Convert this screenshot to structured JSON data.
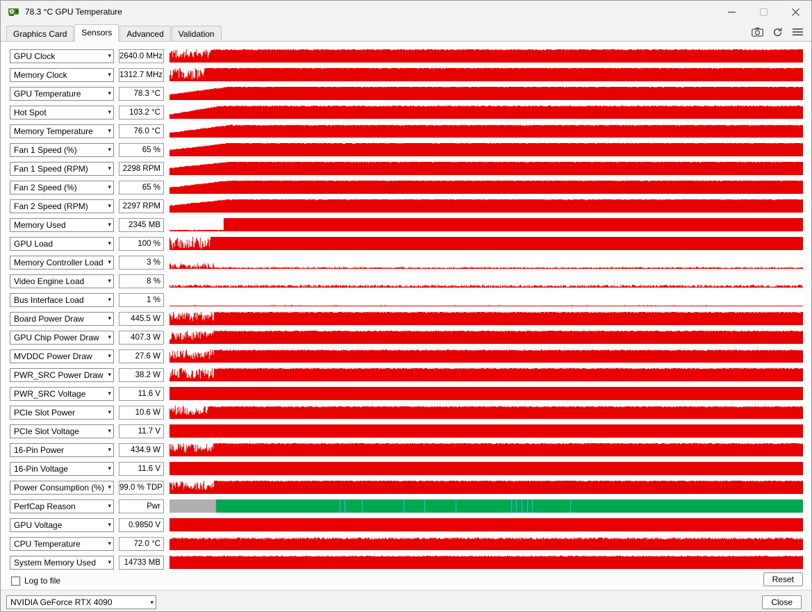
{
  "window": {
    "title": "78.3 °C GPU Temperature",
    "app_icon": "gpuz-app-icon",
    "controls": [
      "minimize-icon",
      "maximize-icon",
      "close-icon"
    ]
  },
  "tabs": [
    {
      "label": "Graphics Card",
      "active": false
    },
    {
      "label": "Sensors",
      "active": true
    },
    {
      "label": "Advanced",
      "active": false
    },
    {
      "label": "Validation",
      "active": false
    }
  ],
  "toolbar_icons": [
    "camera-icon",
    "refresh-icon",
    "menu-icon"
  ],
  "icons": {
    "chevron": "▾"
  },
  "colors": {
    "red": "#e60000",
    "green": "#00a84f",
    "gray": "#b0b0b0",
    "blue": "#58aaff",
    "graph_bg": "#ffffff"
  },
  "sensors": [
    {
      "name": "GPU Clock",
      "value": "2640.0 MHz",
      "graph": {
        "segments": [
          {
            "kind": "spikes",
            "w": 0.065,
            "min": 0.35,
            "max": 1
          },
          {
            "kind": "flat",
            "w": 0.935,
            "v": 1,
            "jitter": 0.05
          }
        ]
      }
    },
    {
      "name": "Memory Clock",
      "value": "1312.7 MHz",
      "graph": {
        "segments": [
          {
            "kind": "spikes",
            "w": 0.055,
            "min": 0.15,
            "max": 1
          },
          {
            "kind": "flat",
            "w": 0.945,
            "v": 1,
            "jitter": 0.03
          }
        ]
      }
    },
    {
      "name": "GPU Temperature",
      "value": "78.3 °C",
      "graph": {
        "segments": [
          {
            "kind": "ramp",
            "w": 0.09,
            "v0": 0.45,
            "v1": 1,
            "jitter": 0.05
          },
          {
            "kind": "flat",
            "w": 0.91,
            "v": 1,
            "jitter": 0.03
          }
        ]
      }
    },
    {
      "name": "Hot Spot",
      "value": "103.2 °C",
      "graph": {
        "segments": [
          {
            "kind": "ramp",
            "w": 0.08,
            "v0": 0.35,
            "v1": 1,
            "jitter": 0.05
          },
          {
            "kind": "flat",
            "w": 0.92,
            "v": 0.99,
            "jitter": 0.05
          }
        ]
      }
    },
    {
      "name": "Memory Temperature",
      "value": "76.0 °C",
      "graph": {
        "segments": [
          {
            "kind": "ramp",
            "w": 0.1,
            "v0": 0.4,
            "v1": 1,
            "jitter": 0.06
          },
          {
            "kind": "flat",
            "w": 0.9,
            "v": 0.97,
            "jitter": 0.06
          }
        ]
      }
    },
    {
      "name": "Fan 1 Speed (%)",
      "value": "65 %",
      "graph": {
        "segments": [
          {
            "kind": "ramp",
            "w": 0.09,
            "v0": 0.5,
            "v1": 1,
            "jitter": 0.04
          },
          {
            "kind": "flat",
            "w": 0.91,
            "v": 1,
            "jitter": 0.03
          }
        ]
      }
    },
    {
      "name": "Fan 1 Speed (RPM)",
      "value": "2298 RPM",
      "graph": {
        "segments": [
          {
            "kind": "ramp",
            "w": 0.09,
            "v0": 0.55,
            "v1": 1,
            "jitter": 0.04
          },
          {
            "kind": "flat",
            "w": 0.91,
            "v": 1,
            "jitter": 0.03
          }
        ]
      }
    },
    {
      "name": "Fan 2 Speed (%)",
      "value": "65 %",
      "graph": {
        "segments": [
          {
            "kind": "ramp",
            "w": 0.09,
            "v0": 0.5,
            "v1": 1,
            "jitter": 0.04
          },
          {
            "kind": "flat",
            "w": 0.91,
            "v": 1,
            "jitter": 0.03
          }
        ]
      }
    },
    {
      "name": "Fan 2 Speed (RPM)",
      "value": "2297 RPM",
      "graph": {
        "segments": [
          {
            "kind": "ramp",
            "w": 0.09,
            "v0": 0.55,
            "v1": 1,
            "jitter": 0.04
          },
          {
            "kind": "flat",
            "w": 0.91,
            "v": 1,
            "jitter": 0.03
          }
        ]
      }
    },
    {
      "name": "Memory Used",
      "value": "2345 MB",
      "graph": {
        "segments": [
          {
            "kind": "flat",
            "w": 0.085,
            "v": 0.12,
            "jitter": 0.05
          },
          {
            "kind": "flat",
            "w": 0.915,
            "v": 1,
            "jitter": 0.015
          }
        ]
      }
    },
    {
      "name": "GPU Load",
      "value": "100 %",
      "graph": {
        "segments": [
          {
            "kind": "spikes",
            "w": 0.065,
            "min": 0.1,
            "max": 1
          },
          {
            "kind": "flat",
            "w": 0.935,
            "v": 1,
            "jitter": 0.015
          }
        ]
      }
    },
    {
      "name": "Memory Controller Load",
      "value": "3 %",
      "graph": {
        "segments": [
          {
            "kind": "spikes",
            "w": 0.07,
            "min": 0.03,
            "max": 0.45
          },
          {
            "kind": "flat",
            "w": 0.93,
            "v": 0.14,
            "jitter": 0.11
          }
        ]
      }
    },
    {
      "name": "Video Engine Load",
      "value": "8 %",
      "graph": {
        "segments": [
          {
            "kind": "flat",
            "w": 1,
            "v": 0.22,
            "jitter": 0.18
          }
        ]
      }
    },
    {
      "name": "Bus Interface Load",
      "value": "1 %",
      "graph": {
        "segments": [
          {
            "kind": "flat",
            "w": 1,
            "v": 0.08,
            "jitter": 0.05
          }
        ]
      }
    },
    {
      "name": "Board Power Draw",
      "value": "445.5 W",
      "graph": {
        "segments": [
          {
            "kind": "spikes",
            "w": 0.07,
            "min": 0.3,
            "max": 1
          },
          {
            "kind": "flat",
            "w": 0.93,
            "v": 1,
            "jitter": 0.06
          }
        ]
      }
    },
    {
      "name": "GPU Chip Power Draw",
      "value": "407.3 W",
      "graph": {
        "segments": [
          {
            "kind": "spikes",
            "w": 0.07,
            "min": 0.3,
            "max": 1
          },
          {
            "kind": "flat",
            "w": 0.93,
            "v": 1,
            "jitter": 0.06
          }
        ]
      }
    },
    {
      "name": "MVDDC Power Draw",
      "value": "27.6 W",
      "graph": {
        "segments": [
          {
            "kind": "spikes",
            "w": 0.07,
            "min": 0.25,
            "max": 1
          },
          {
            "kind": "flat",
            "w": 0.93,
            "v": 0.98,
            "jitter": 0.07
          }
        ]
      }
    },
    {
      "name": "PWR_SRC Power Draw",
      "value": "38.2 W",
      "graph": {
        "segments": [
          {
            "kind": "spikes",
            "w": 0.07,
            "min": 0.2,
            "max": 1
          },
          {
            "kind": "flat",
            "w": 0.93,
            "v": 1,
            "jitter": 0.05
          }
        ]
      }
    },
    {
      "name": "PWR_SRC Voltage",
      "value": "11.6 V",
      "graph": {
        "segments": [
          {
            "kind": "flat",
            "w": 1,
            "v": 1,
            "jitter": 0
          }
        ]
      }
    },
    {
      "name": "PCIe Slot Power",
      "value": "10.6 W",
      "graph": {
        "segments": [
          {
            "kind": "spikes",
            "w": 0.06,
            "min": 0.3,
            "max": 1
          },
          {
            "kind": "flat",
            "w": 0.94,
            "v": 0.97,
            "jitter": 0.07
          }
        ]
      }
    },
    {
      "name": "PCIe Slot Voltage",
      "value": "11.7 V",
      "graph": {
        "segments": [
          {
            "kind": "flat",
            "w": 1,
            "v": 1,
            "jitter": 0
          }
        ]
      }
    },
    {
      "name": "16-Pin Power",
      "value": "434.9 W",
      "graph": {
        "segments": [
          {
            "kind": "spikes",
            "w": 0.07,
            "min": 0.3,
            "max": 1
          },
          {
            "kind": "flat",
            "w": 0.93,
            "v": 1,
            "jitter": 0.05
          }
        ]
      }
    },
    {
      "name": "16-Pin Voltage",
      "value": "11.6 V",
      "graph": {
        "segments": [
          {
            "kind": "flat",
            "w": 1,
            "v": 1,
            "jitter": 0
          }
        ]
      }
    },
    {
      "name": "Power Consumption (%)",
      "value": "99.0 % TDP",
      "graph": {
        "segments": [
          {
            "kind": "spikes",
            "w": 0.07,
            "min": 0.3,
            "max": 1
          },
          {
            "kind": "flat",
            "w": 0.93,
            "v": 1,
            "jitter": 0.04
          }
        ]
      }
    },
    {
      "name": "PerfCap Reason",
      "value": "Pwr",
      "graph": {
        "segments": [
          {
            "kind": "flat",
            "w": 0.073,
            "v": 1,
            "color": "gray"
          },
          {
            "kind": "flat",
            "w": 0.927,
            "v": 1,
            "color": "green"
          }
        ],
        "blue_ticks": [
          0.269,
          0.276,
          0.304,
          0.369,
          0.402,
          0.452,
          0.539,
          0.547,
          0.556,
          0.565,
          0.572,
          0.633
        ]
      }
    },
    {
      "name": "GPU Voltage",
      "value": "0.9850 V",
      "graph": {
        "segments": [
          {
            "kind": "flat",
            "w": 1,
            "v": 1,
            "jitter": 0.01
          }
        ]
      }
    },
    {
      "name": "CPU Temperature",
      "value": "72.0 °C",
      "graph": {
        "segments": [
          {
            "kind": "flat",
            "w": 1,
            "v": 0.97,
            "jitter": 0.16
          }
        ]
      }
    },
    {
      "name": "System Memory Used",
      "value": "14733 MB",
      "graph": {
        "segments": [
          {
            "kind": "flat",
            "w": 1,
            "v": 0.98,
            "jitter": 0.02
          }
        ]
      }
    }
  ],
  "footer": {
    "log_checkbox_label": "Log to file",
    "log_checked": false,
    "reset_button": "Reset",
    "gpu_selector": "NVIDIA GeForce RTX 4090",
    "close_button": "Close"
  }
}
